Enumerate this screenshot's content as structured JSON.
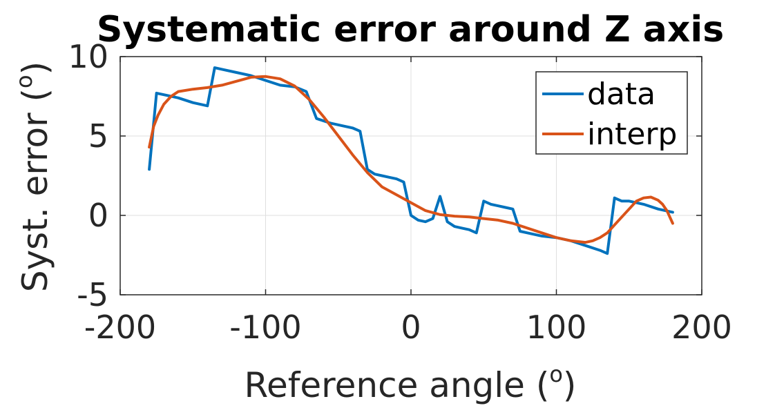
{
  "chart_data": {
    "type": "line",
    "title": "Systematic error around Z axis",
    "xlabel": {
      "prefix": "Reference angle (",
      "sup": "o",
      "suffix": ")"
    },
    "ylabel": {
      "prefix": "Syst. error (",
      "sup": "o",
      "suffix": ")"
    },
    "xlim": [
      -200,
      200
    ],
    "ylim": [
      -5,
      10
    ],
    "xticks": [
      -200,
      -100,
      0,
      100,
      200
    ],
    "yticks": [
      -5,
      0,
      5,
      10
    ],
    "xtick_labels": [
      "-200",
      "-100",
      "0",
      "100",
      "200"
    ],
    "ytick_labels": [
      "-5",
      "0",
      "5",
      "10"
    ],
    "grid": true,
    "legend_position": "top-right",
    "series": [
      {
        "name": "data",
        "color": "#0072BD",
        "x": [
          -180,
          -175,
          -170,
          -160,
          -150,
          -140,
          -135,
          -130,
          -120,
          -110,
          -100,
          -90,
          -80,
          -72,
          -65,
          -55,
          -45,
          -40,
          -35,
          -30,
          -25,
          -20,
          -15,
          -10,
          -5,
          0,
          5,
          10,
          15,
          20,
          25,
          30,
          35,
          40,
          45,
          50,
          55,
          60,
          65,
          70,
          75,
          80,
          90,
          100,
          110,
          120,
          130,
          135,
          140,
          145,
          150,
          160,
          170,
          180
        ],
        "y": [
          2.9,
          7.7,
          7.6,
          7.4,
          7.1,
          6.9,
          9.3,
          9.2,
          9.0,
          8.8,
          8.5,
          8.2,
          8.1,
          7.8,
          6.1,
          5.8,
          5.6,
          5.5,
          5.3,
          2.9,
          2.6,
          2.5,
          2.4,
          2.3,
          2.1,
          0.0,
          -0.3,
          -0.4,
          -0.2,
          1.2,
          -0.4,
          -0.7,
          -0.8,
          -0.9,
          -1.1,
          0.9,
          0.7,
          0.6,
          0.5,
          0.4,
          -1.0,
          -1.1,
          -1.3,
          -1.4,
          -1.6,
          -1.9,
          -2.2,
          -2.4,
          1.1,
          0.9,
          0.9,
          0.7,
          0.4,
          0.2
        ]
      },
      {
        "name": "interp",
        "color": "#D95319",
        "x": [
          -180,
          -177,
          -174,
          -170,
          -165,
          -160,
          -150,
          -140,
          -130,
          -120,
          -110,
          -100,
          -90,
          -80,
          -70,
          -60,
          -50,
          -40,
          -30,
          -20,
          -10,
          0,
          10,
          20,
          30,
          40,
          50,
          60,
          70,
          80,
          90,
          100,
          110,
          120,
          125,
          130,
          135,
          140,
          145,
          150,
          155,
          160,
          165,
          170,
          173,
          176,
          178,
          180
        ],
        "y": [
          4.3,
          5.6,
          6.3,
          7.0,
          7.5,
          7.8,
          7.95,
          8.05,
          8.2,
          8.45,
          8.7,
          8.75,
          8.6,
          8.15,
          7.3,
          6.2,
          5.0,
          3.8,
          2.7,
          1.8,
          1.3,
          0.8,
          0.3,
          0.05,
          -0.05,
          -0.1,
          -0.2,
          -0.3,
          -0.5,
          -0.8,
          -1.1,
          -1.4,
          -1.6,
          -1.7,
          -1.6,
          -1.4,
          -1.1,
          -0.6,
          -0.1,
          0.4,
          0.9,
          1.1,
          1.15,
          0.95,
          0.7,
          0.3,
          -0.1,
          -0.5
        ]
      }
    ]
  }
}
